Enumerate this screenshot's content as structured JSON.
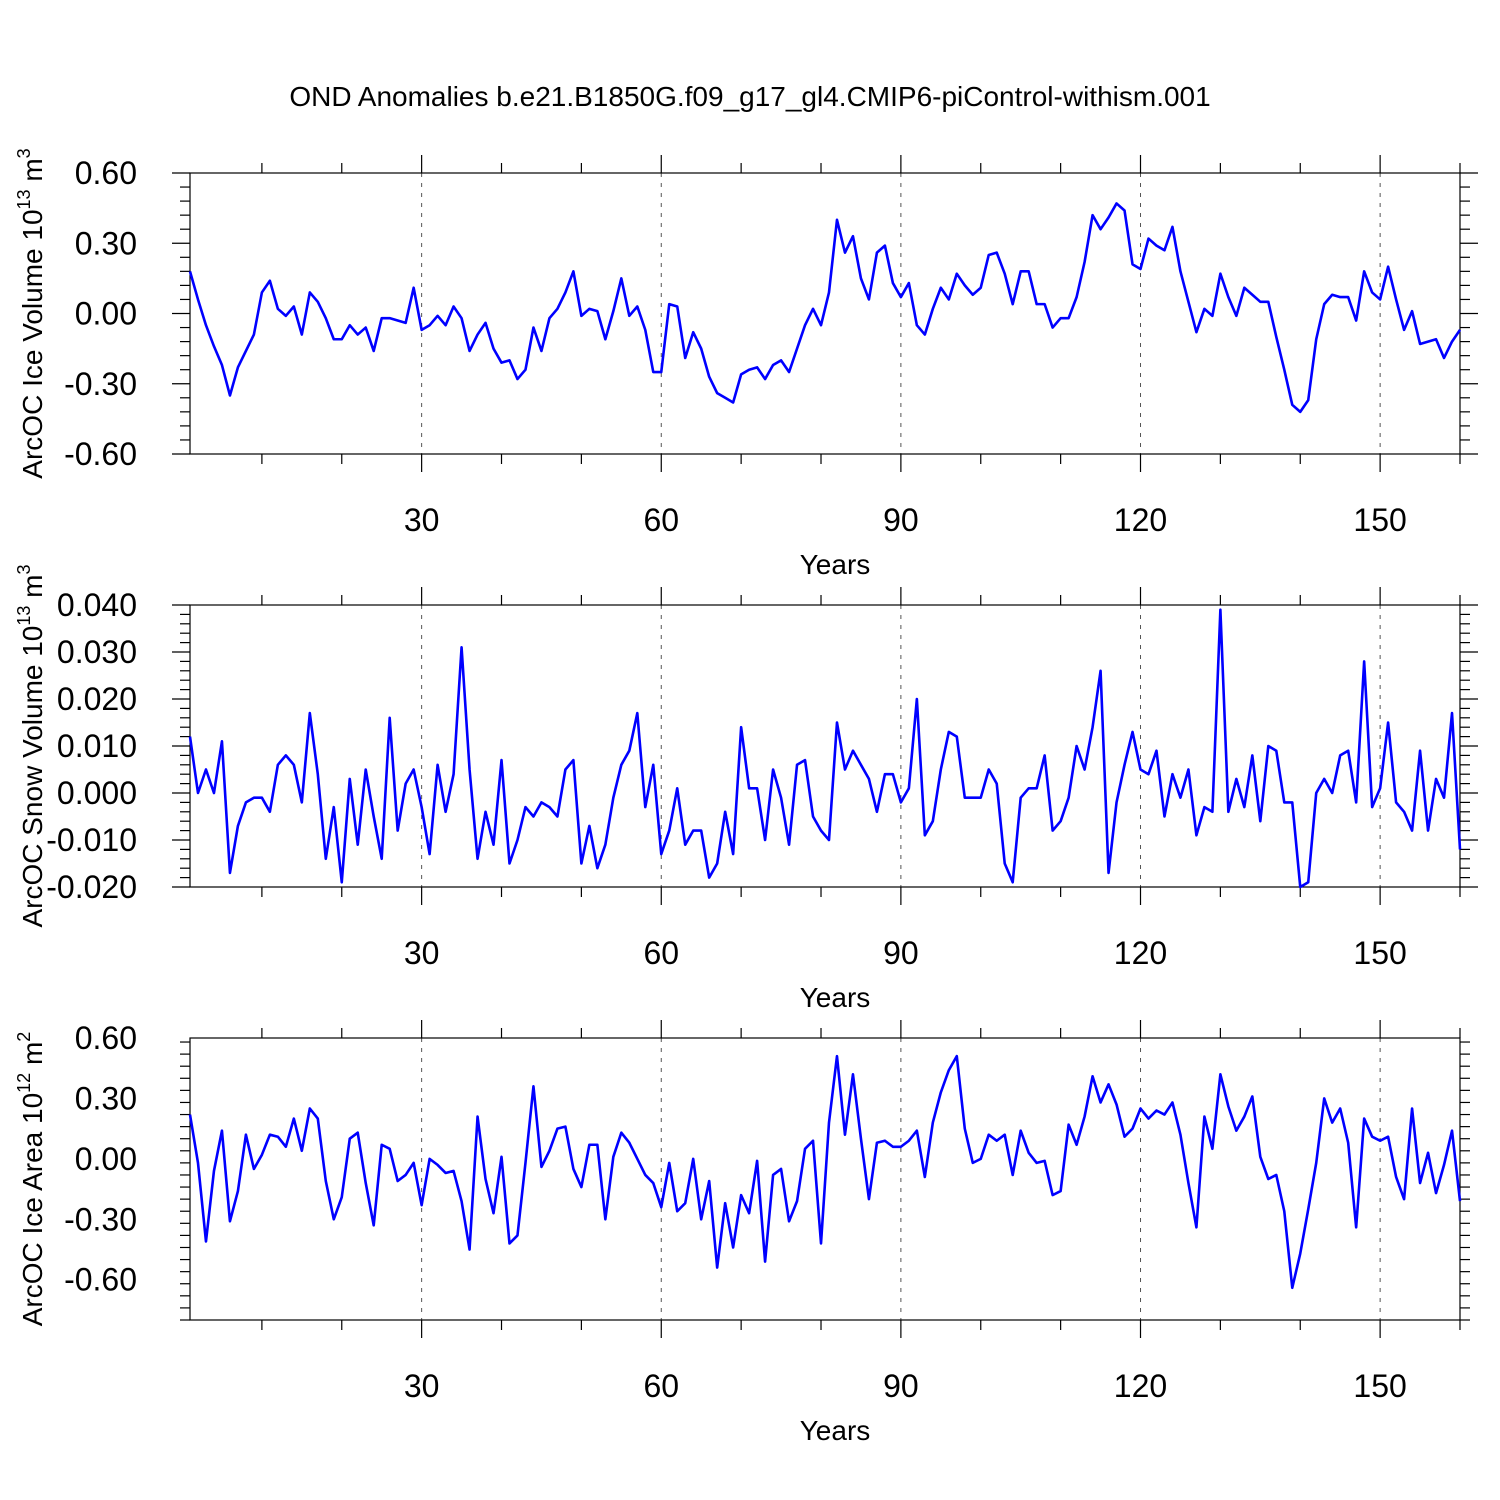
{
  "title": "OND Anomalies b.e21.B1850G.f09_g17_gl4.CMIP6-piControl-withism.001",
  "line_color": "#0000ff",
  "chart_data": [
    {
      "type": "line",
      "xlabel": "Years",
      "ylabel": {
        "text": "ArcOC Ice Volume 10",
        "sup": "13",
        "unit": " m",
        "unit_sup": "3"
      },
      "xlim": [
        1,
        160
      ],
      "ylim": [
        -0.6,
        0.6
      ],
      "xticks": [
        30,
        60,
        90,
        120,
        150
      ],
      "xtick_labels": [
        "30",
        "60",
        "90",
        "120",
        "150"
      ],
      "yticks": [
        0.6,
        0.3,
        0.0,
        -0.3,
        -0.6
      ],
      "ytick_labels": [
        "0.60",
        "0.30",
        "0.00",
        "-0.30",
        "-0.60"
      ],
      "grid": "vertical dashed at x ticks",
      "x_start": 1,
      "values": [
        0.18,
        0.06,
        -0.05,
        -0.14,
        -0.22,
        -0.35,
        -0.23,
        -0.16,
        -0.09,
        0.09,
        0.14,
        0.02,
        -0.01,
        0.03,
        -0.09,
        0.09,
        0.05,
        -0.02,
        -0.11,
        -0.11,
        -0.05,
        -0.09,
        -0.06,
        -0.16,
        -0.02,
        -0.02,
        -0.03,
        -0.04,
        0.11,
        -0.07,
        -0.05,
        -0.01,
        -0.05,
        0.03,
        -0.02,
        -0.16,
        -0.09,
        -0.04,
        -0.15,
        -0.21,
        -0.2,
        -0.28,
        -0.24,
        -0.06,
        -0.16,
        -0.02,
        0.02,
        0.09,
        0.18,
        -0.01,
        0.02,
        0.01,
        -0.11,
        0.01,
        0.15,
        -0.01,
        0.03,
        -0.07,
        -0.25,
        -0.25,
        0.04,
        0.03,
        -0.19,
        -0.08,
        -0.15,
        -0.27,
        -0.34,
        -0.36,
        -0.38,
        -0.26,
        -0.24,
        -0.23,
        -0.28,
        -0.22,
        -0.2,
        -0.25,
        -0.15,
        -0.05,
        0.02,
        -0.05,
        0.09,
        0.4,
        0.26,
        0.33,
        0.15,
        0.06,
        0.26,
        0.29,
        0.13,
        0.07,
        0.13,
        -0.05,
        -0.09,
        0.02,
        0.11,
        0.06,
        0.17,
        0.12,
        0.08,
        0.11,
        0.25,
        0.26,
        0.17,
        0.04,
        0.18,
        0.18,
        0.04,
        0.04,
        -0.06,
        -0.02,
        -0.02,
        0.07,
        0.22,
        0.42,
        0.36,
        0.41,
        0.47,
        0.44,
        0.21,
        0.19,
        0.32,
        0.29,
        0.27,
        0.37,
        0.18,
        0.05,
        -0.08,
        0.02,
        -0.01,
        0.17,
        0.07,
        -0.01,
        0.11,
        0.08,
        0.05,
        0.05,
        -0.1,
        -0.24,
        -0.39,
        -0.42,
        -0.37,
        -0.11,
        0.04,
        0.08,
        0.07,
        0.07,
        -0.03,
        0.18,
        0.09,
        0.06,
        0.2,
        0.06,
        -0.07,
        0.01,
        -0.13,
        -0.12,
        -0.11,
        -0.19,
        -0.12,
        -0.07
      ]
    },
    {
      "type": "line",
      "xlabel": "Years",
      "ylabel": {
        "text": "ArcOC Snow Volume 10",
        "sup": "13",
        "unit": " m",
        "unit_sup": "3"
      },
      "xlim": [
        1,
        160
      ],
      "ylim": [
        -0.02,
        0.04
      ],
      "xticks": [
        30,
        60,
        90,
        120,
        150
      ],
      "xtick_labels": [
        "30",
        "60",
        "90",
        "120",
        "150"
      ],
      "yticks": [
        0.04,
        0.03,
        0.02,
        0.01,
        0.0,
        -0.01,
        -0.02
      ],
      "ytick_labels": [
        "0.040",
        "0.030",
        "0.020",
        "0.010",
        "0.000",
        "-0.010",
        "-0.020"
      ],
      "grid": "vertical dashed at x ticks",
      "x_start": 1,
      "values": [
        0.012,
        0.0,
        0.005,
        0.0,
        0.011,
        -0.017,
        -0.007,
        -0.002,
        -0.001,
        -0.001,
        -0.004,
        0.006,
        0.008,
        0.006,
        -0.002,
        0.017,
        0.004,
        -0.014,
        -0.003,
        -0.019,
        0.003,
        -0.011,
        0.005,
        -0.005,
        -0.014,
        0.016,
        -0.008,
        0.002,
        0.005,
        -0.003,
        -0.013,
        0.006,
        -0.004,
        0.004,
        0.031,
        0.005,
        -0.014,
        -0.004,
        -0.011,
        0.007,
        -0.015,
        -0.01,
        -0.003,
        -0.005,
        -0.002,
        -0.003,
        -0.005,
        0.005,
        0.007,
        -0.015,
        -0.007,
        -0.016,
        -0.011,
        -0.001,
        0.006,
        0.009,
        0.017,
        -0.003,
        0.006,
        -0.013,
        -0.008,
        0.001,
        -0.011,
        -0.008,
        -0.008,
        -0.018,
        -0.015,
        -0.004,
        -0.013,
        0.014,
        0.001,
        0.001,
        -0.01,
        0.005,
        -0.001,
        -0.011,
        0.006,
        0.007,
        -0.005,
        -0.008,
        -0.01,
        0.015,
        0.005,
        0.009,
        0.006,
        0.003,
        -0.004,
        0.004,
        0.004,
        -0.002,
        0.001,
        0.02,
        -0.009,
        -0.006,
        0.005,
        0.013,
        0.012,
        -0.001,
        -0.001,
        -0.001,
        0.005,
        0.002,
        -0.015,
        -0.019,
        -0.001,
        0.001,
        0.001,
        0.008,
        -0.008,
        -0.006,
        -0.001,
        0.01,
        0.005,
        0.014,
        0.026,
        -0.017,
        -0.002,
        0.006,
        0.013,
        0.005,
        0.004,
        0.009,
        -0.005,
        0.004,
        -0.001,
        0.005,
        -0.009,
        -0.003,
        -0.004,
        0.039,
        -0.004,
        0.003,
        -0.003,
        0.008,
        -0.006,
        0.01,
        0.009,
        -0.002,
        -0.002,
        -0.02,
        -0.019,
        0.0,
        0.003,
        0.0,
        0.008,
        0.009,
        -0.002,
        0.028,
        -0.003,
        0.001,
        0.015,
        -0.002,
        -0.004,
        -0.008,
        0.009,
        -0.008,
        0.003,
        -0.001,
        0.017,
        -0.012
      ]
    },
    {
      "type": "line",
      "xlabel": "Years",
      "ylabel": {
        "text": "ArcOC Ice Area 10",
        "sup": "12",
        "unit": " m",
        "unit_sup": "2"
      },
      "xlim": [
        1,
        160
      ],
      "ylim": [
        -0.8,
        0.6
      ],
      "xticks": [
        30,
        60,
        90,
        120,
        150
      ],
      "xtick_labels": [
        "30",
        "60",
        "90",
        "120",
        "150"
      ],
      "yticks": [
        0.6,
        0.3,
        0.0,
        -0.3,
        -0.6
      ],
      "ytick_labels": [
        "0.60",
        "0.30",
        "0.00",
        "-0.30",
        "-0.60"
      ],
      "grid": "vertical dashed at x ticks",
      "x_start": 1,
      "values": [
        0.22,
        -0.02,
        -0.41,
        -0.06,
        0.14,
        -0.31,
        -0.16,
        0.12,
        -0.05,
        0.02,
        0.12,
        0.11,
        0.06,
        0.2,
        0.04,
        0.25,
        0.2,
        -0.11,
        -0.3,
        -0.19,
        0.1,
        0.13,
        -0.12,
        -0.33,
        0.07,
        0.05,
        -0.11,
        -0.08,
        -0.02,
        -0.23,
        0.0,
        -0.03,
        -0.07,
        -0.06,
        -0.21,
        -0.45,
        0.21,
        -0.1,
        -0.27,
        0.01,
        -0.42,
        -0.38,
        -0.02,
        0.36,
        -0.04,
        0.04,
        0.15,
        0.16,
        -0.05,
        -0.14,
        0.07,
        0.07,
        -0.3,
        0.01,
        0.13,
        0.08,
        0.0,
        -0.08,
        -0.12,
        -0.24,
        -0.02,
        -0.26,
        -0.22,
        0.0,
        -0.3,
        -0.11,
        -0.54,
        -0.22,
        -0.44,
        -0.18,
        -0.27,
        -0.01,
        -0.51,
        -0.08,
        -0.05,
        -0.31,
        -0.21,
        0.05,
        0.09,
        -0.42,
        0.18,
        0.51,
        0.12,
        0.42,
        0.1,
        -0.2,
        0.08,
        0.09,
        0.06,
        0.06,
        0.09,
        0.14,
        -0.09,
        0.18,
        0.33,
        0.44,
        0.51,
        0.15,
        -0.02,
        0.0,
        0.12,
        0.09,
        0.12,
        -0.08,
        0.14,
        0.03,
        -0.02,
        -0.01,
        -0.18,
        -0.16,
        0.17,
        0.07,
        0.21,
        0.41,
        0.28,
        0.37,
        0.27,
        0.11,
        0.15,
        0.25,
        0.2,
        0.24,
        0.22,
        0.28,
        0.12,
        -0.12,
        -0.34,
        0.21,
        0.05,
        0.42,
        0.26,
        0.14,
        0.21,
        0.31,
        0.01,
        -0.1,
        -0.08,
        -0.26,
        -0.64,
        -0.47,
        -0.25,
        -0.02,
        0.3,
        0.18,
        0.25,
        0.08,
        -0.34,
        0.2,
        0.11,
        0.09,
        0.11,
        -0.09,
        -0.2,
        0.25,
        -0.12,
        0.03,
        -0.17,
        -0.03,
        0.14,
        -0.21
      ]
    }
  ]
}
